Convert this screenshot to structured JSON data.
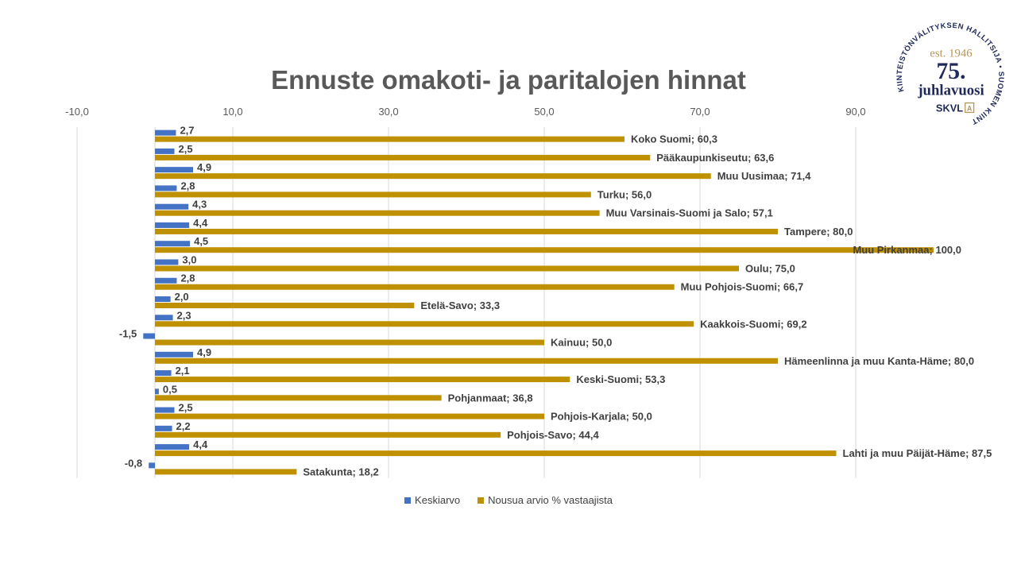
{
  "logo": {
    "arc_top": "KIINTEISTÖNVÄLITYKSEN HALLITSIJA",
    "arc_right": "SUOMEN KIINTEISTÖNVÄLITTÄJÄT RY",
    "est": "est. 1946",
    "number": "75.",
    "word": "juhlavuosi",
    "brand": "SKVL",
    "colors": {
      "navy": "#1f2a5a",
      "gold": "#b8965a"
    }
  },
  "chart_data": {
    "type": "bar",
    "orientation": "horizontal",
    "title": "Ennuste omakoti- ja paritalojen hinnat",
    "xlim": [
      -10,
      100
    ],
    "x_ticks": [
      -10,
      10,
      30,
      50,
      70,
      90
    ],
    "x_tick_labels": [
      "-10,0",
      "10,0",
      "30,0",
      "50,0",
      "70,0",
      "90,0"
    ],
    "grid": true,
    "axis_position": "top",
    "legend_position": "bottom",
    "categories": [
      "Koko Suomi",
      "Pääkaupunkiseutu",
      "Muu Uusimaa",
      "Turku",
      "Muu Varsinais-Suomi ja Salo",
      "Tampere",
      "Muu Pirkanmaa",
      "Oulu",
      "Muu Pohjois-Suomi",
      "Etelä-Savo",
      "Kaakkois-Suomi",
      "Kainuu",
      "Hämeenlinna ja muu Kanta-Häme",
      "Keski-Suomi",
      "Pohjanmaat",
      "Pohjois-Karjala",
      "Pohjois-Savo",
      "Lahti ja muu Päijät-Häme",
      "Satakunta"
    ],
    "series": [
      {
        "name": "Keskiarvo",
        "color": "#4472c4",
        "values": [
          2.7,
          2.5,
          4.9,
          2.8,
          4.3,
          4.4,
          4.5,
          3.0,
          2.8,
          2.0,
          2.3,
          -1.5,
          4.9,
          2.1,
          0.5,
          2.5,
          2.2,
          4.4,
          -0.8
        ],
        "labels": [
          "2,7",
          "2,5",
          "4,9",
          "2,8",
          "4,3",
          "4,4",
          "4,5",
          "3,0",
          "2,8",
          "2,0",
          "2,3",
          "-1,5",
          "4,9",
          "2,1",
          "0,5",
          "2,5",
          "2,2",
          "4,4",
          "-0,8"
        ]
      },
      {
        "name": "Nousua arvio % vastaajista",
        "color": "#bf9000",
        "values": [
          60.3,
          63.6,
          71.4,
          56.0,
          57.1,
          80.0,
          100.0,
          75.0,
          66.7,
          33.3,
          69.2,
          50.0,
          80.0,
          53.3,
          36.8,
          50.0,
          44.4,
          87.5,
          18.2
        ],
        "labels": [
          "Koko Suomi; 60,3",
          "Pääkaupunkiseutu; 63,6",
          "Muu Uusimaa; 71,4",
          "Turku; 56,0",
          "Muu Varsinais-Suomi ja Salo; 57,1",
          "Tampere; 80,0",
          "Muu Pirkanmaa; 100,0",
          "Oulu; 75,0",
          "Muu Pohjois-Suomi; 66,7",
          "Etelä-Savo; 33,3",
          "Kaakkois-Suomi; 69,2",
          "Kainuu; 50,0",
          "Hämeenlinna ja muu Kanta-Häme; 80,0",
          "Keski-Suomi; 53,3",
          "Pohjanmaat; 36,8",
          "Pohjois-Karjala; 50,0",
          "Pohjois-Savo; 44,4",
          "Lahti ja muu Päijät-Häme; 87,5",
          "Satakunta; 18,2"
        ]
      }
    ]
  }
}
